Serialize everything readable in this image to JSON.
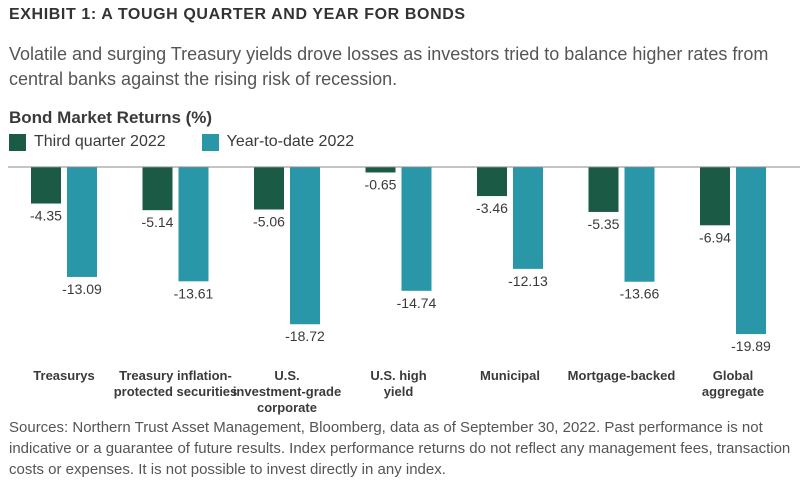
{
  "header": {
    "exhibit": "EXHIBIT 1: A TOUGH QUARTER AND YEAR FOR BONDS",
    "subtitle": "Volatile and surging Treasury yields drove losses as investors tried to balance higher rates from central banks against the rising risk of recession."
  },
  "legend": {
    "q3_label": "Third quarter 2022",
    "ytd_label": "Year-to-date 2022"
  },
  "colors": {
    "q3": "#1b5a45",
    "ytd": "#2a97a9"
  },
  "footer": {
    "sources": "Sources: Northern Trust Asset Management, Bloomberg, data as of September 30, 2022. Past performance is not indicative or a guarantee of future results. Index performance returns do not reflect any management fees, transaction costs or expenses. It is not possible to invest directly in any index."
  },
  "chart_data": {
    "type": "bar",
    "title": "Bond Market Returns (%)",
    "categories": [
      [
        "Treasurys"
      ],
      [
        "Treasury inflation-",
        "protected securities"
      ],
      [
        "U.S.",
        "investment-grade",
        "corporate"
      ],
      [
        "U.S. high",
        "yield"
      ],
      [
        "Municipal"
      ],
      [
        "Mortgage-backed"
      ],
      [
        "Global",
        "aggregate"
      ]
    ],
    "series": [
      {
        "name": "Third quarter 2022",
        "values": [
          -4.35,
          -5.14,
          -5.06,
          -0.65,
          -3.46,
          -5.35,
          -6.94
        ]
      },
      {
        "name": "Year-to-date 2022",
        "values": [
          -13.09,
          -13.61,
          -18.72,
          -14.74,
          -12.13,
          -13.66,
          -19.89
        ]
      }
    ],
    "data_labels": [
      [
        "-4.35",
        "-5.14",
        "-5.06",
        "-0.65",
        "-3.46",
        "-5.35",
        "-6.94"
      ],
      [
        "-13.09",
        "-13.61",
        "-18.72",
        "-14.74",
        "-12.13",
        "-13.66",
        "-19.89"
      ]
    ],
    "ylim": [
      -20,
      0
    ],
    "grid": false,
    "legend_position": "top-left"
  }
}
